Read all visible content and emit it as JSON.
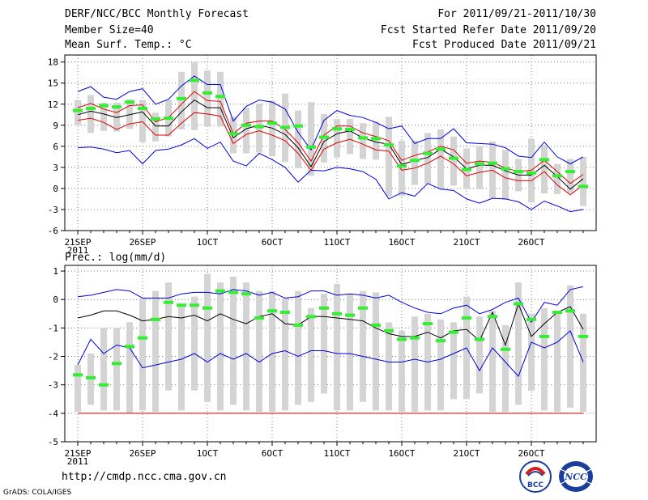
{
  "header": {
    "title": "DERF/NCC/BCC Monthly Forecast",
    "member_size": "Member Size=40",
    "variable": "Mean Surf. Temp.: °C",
    "period": "For 2011/09/21-2011/10/30",
    "fcst_started": "Fcst Started Refer Date 2011/09/20",
    "fcst_produced": "Fcst Produced Date 2011/09/21"
  },
  "footer": {
    "url": "http://cmdp.ncc.cma.gov.cn",
    "grads": "GrADS: COLA/IGES",
    "logo_bcc": "BCC",
    "logo_ncc": "NCC"
  },
  "colors": {
    "max_line": "#0000dd",
    "min_line": "#0000dd",
    "upper_line": "#dd0000",
    "lower_line": "#dd0000",
    "mean_line": "#000000",
    "observed_marker": "#33ee33",
    "spread_bar": "#d4d4d4"
  },
  "chart_data": [
    {
      "type": "line",
      "title": "Mean Surf. Temp.: °C",
      "ylim": [
        -6,
        19
      ],
      "yticks": [
        -6,
        -3,
        0,
        3,
        6,
        9,
        12,
        15,
        18
      ],
      "ytick_labels": [
        "-6",
        "-3",
        "0",
        "3",
        "6",
        "9",
        "12",
        "15",
        "18"
      ],
      "xtick_labels": [
        "21SEP",
        "26SEP",
        "1OCT",
        "6OCT",
        "11OCT",
        "16OCT",
        "21OCT",
        "26OCT"
      ],
      "xtick_days": [
        0,
        5,
        10,
        15,
        20,
        25,
        30,
        35
      ],
      "year_label": "2011",
      "days": 40,
      "series": [
        {
          "name": "max",
          "values": [
            13.8,
            14.5,
            13,
            12.7,
            13.8,
            14.2,
            12,
            12.7,
            14.6,
            16,
            14.8,
            14.8,
            9.6,
            11.7,
            12.6,
            12.3,
            11.3,
            8,
            5.5,
            9.7,
            11.1,
            10.4,
            10.1,
            9.4,
            8.5,
            8.9,
            6.4,
            7.1,
            7.1,
            8.5,
            6.5,
            6.4,
            6.3,
            5.8,
            4.6,
            4.4,
            6.6,
            4.5,
            3.5,
            4.5
          ]
        },
        {
          "name": "upper",
          "values": [
            11.5,
            12.1,
            11.3,
            10.8,
            11.8,
            11.9,
            9.5,
            10.1,
            12,
            13.8,
            12.5,
            12.4,
            7.8,
            9.3,
            9.6,
            9.6,
            8.4,
            6.5,
            3.9,
            7.6,
            8.9,
            8.9,
            7.9,
            7.4,
            6.8,
            4,
            4.7,
            5.2,
            6,
            5.5,
            3.6,
            3.9,
            3.7,
            2.9,
            2.4,
            2.6,
            4,
            2.4,
            0.7,
            2
          ]
        },
        {
          "name": "mean",
          "values": [
            10.5,
            11,
            10.6,
            10.1,
            10.5,
            10.9,
            8.9,
            8.9,
            10.9,
            12.6,
            11.5,
            11.5,
            7.2,
            8.5,
            9,
            8.6,
            7.7,
            5.8,
            3.1,
            6.7,
            7.8,
            8.2,
            7.2,
            6.6,
            6.3,
            3.4,
            4,
            4.4,
            5.6,
            4.5,
            2.8,
            3.3,
            3.3,
            2.5,
            1.9,
            1.9,
            3.3,
            1.7,
            -0.1,
            1.4
          ]
        },
        {
          "name": "lower",
          "values": [
            9.7,
            10,
            9.4,
            8.4,
            9.2,
            9.5,
            7.6,
            7.6,
            9.3,
            10.8,
            10.6,
            10.3,
            6.4,
            7.7,
            8.2,
            7.6,
            6.8,
            5,
            2.6,
            5.6,
            6.5,
            7,
            6.3,
            5.5,
            5.3,
            2.6,
            2.9,
            3.6,
            4.6,
            3.5,
            1.8,
            2.3,
            2.6,
            1.5,
            1.1,
            1.1,
            2.4,
            0.5,
            -0.9,
            0.5
          ]
        },
        {
          "name": "min",
          "values": [
            5.8,
            5.9,
            5.6,
            5.1,
            5.4,
            3.5,
            5.4,
            5.6,
            6.2,
            7.1,
            5.7,
            6.6,
            3.9,
            3.2,
            5,
            4.1,
            3,
            0.9,
            2.6,
            2.5,
            3,
            2.8,
            2.4,
            1.3,
            -1.5,
            -0.6,
            -1.1,
            0.7,
            -0.1,
            -0.3,
            -1.5,
            -2.1,
            -1.4,
            -1.5,
            -1.9,
            -3,
            -1.8,
            -2.5,
            -3.3,
            -3
          ]
        },
        {
          "name": "observed",
          "values": [
            11.1,
            11.4,
            11.8,
            11.6,
            12.3,
            11.4,
            9.9,
            10,
            12.8,
            15.4,
            13.6,
            13.1,
            7.8,
            9,
            8.8,
            9.3,
            8.7,
            8.9,
            5.9,
            7.3,
            8.5,
            8.4,
            7.2,
            7.1,
            6.2,
            3.2,
            4,
            5,
            5.6,
            4.3,
            2.7,
            3.5,
            3.6,
            2.8,
            2.4,
            2.2,
            4.1,
            1.8,
            2.4,
            0.3
          ]
        },
        {
          "name": "ens_high",
          "values": [
            12.6,
            13.3,
            12.2,
            12.2,
            12.7,
            12.6,
            10.8,
            12.6,
            16.6,
            18,
            16.8,
            16.6,
            10.2,
            11.5,
            12.1,
            12.5,
            13.5,
            11.1,
            12.3,
            10.6,
            9.9,
            9.9,
            9.3,
            9.5,
            10.2,
            6.8,
            6.8,
            7.9,
            8.4,
            7.4,
            5.7,
            6,
            6.7,
            5.5,
            4.2,
            7.1,
            6.2,
            3.5,
            4.2,
            4.5
          ]
        },
        {
          "name": "ens_low",
          "values": [
            9,
            7.9,
            8.2,
            8.1,
            8.5,
            6.6,
            6.7,
            7.4,
            8.4,
            8.3,
            8.8,
            8.8,
            5,
            5,
            5.1,
            4.6,
            3.8,
            2.9,
            1.8,
            3.7,
            4.4,
            4.9,
            4.2,
            4.1,
            -1.1,
            -1.1,
            0.5,
            0.6,
            -0.1,
            0.4,
            -0.1,
            -0.1,
            -1.4,
            -1.6,
            -0.4,
            -2,
            -0.7,
            -0.8,
            -0.6,
            -2.5
          ]
        }
      ]
    },
    {
      "type": "line",
      "title": "Prec.: log(mm/d)",
      "ylim": [
        -5,
        1.2
      ],
      "yticks": [
        -5,
        -4,
        -3,
        -2,
        -1,
        0,
        1
      ],
      "ytick_labels": [
        "-5",
        "-4",
        "-3",
        "-2",
        "-1",
        "0",
        "1"
      ],
      "xtick_labels": [
        "21SEP",
        "26SEP",
        "1OCT",
        "6OCT",
        "11OCT",
        "16OCT",
        "21OCT",
        "26OCT"
      ],
      "xtick_days": [
        0,
        5,
        10,
        15,
        20,
        25,
        30,
        35
      ],
      "year_label": "2011",
      "days": 40,
      "series": [
        {
          "name": "max",
          "values": [
            0.1,
            0.15,
            0.25,
            0.35,
            0.3,
            0.05,
            0.05,
            0.05,
            0.2,
            0.25,
            0.25,
            0.2,
            0.35,
            0.3,
            0.15,
            0.25,
            0.05,
            0.1,
            0.3,
            0.3,
            0.15,
            0.2,
            0.15,
            0.05,
            0.15,
            -0.1,
            -0.3,
            -0.45,
            -0.5,
            -0.3,
            -0.2,
            -0.5,
            -0.35,
            -0.1,
            0.05,
            -0.8,
            -0.1,
            -0.2,
            0.35,
            0.45
          ]
        },
        {
          "name": "mean",
          "values": [
            -0.65,
            -0.55,
            -0.4,
            -0.4,
            -0.55,
            -0.75,
            -0.7,
            -0.6,
            -0.65,
            -0.55,
            -0.75,
            -0.5,
            -0.7,
            -0.85,
            -0.6,
            -0.5,
            -0.85,
            -0.9,
            -0.6,
            -0.6,
            -0.65,
            -0.7,
            -0.75,
            -1,
            -1.2,
            -1.3,
            -1.3,
            -1.15,
            -1.35,
            -1.1,
            -1.05,
            -1.45,
            -0.45,
            -1.6,
            -0.15,
            -1.3,
            -0.85,
            -0.45,
            -0.25,
            -1.05
          ]
        },
        {
          "name": "min",
          "values": [
            -2.3,
            -1.4,
            -1.9,
            -1.6,
            -1.7,
            -2.4,
            -2.3,
            -2.2,
            -2.1,
            -1.9,
            -2.2,
            -1.9,
            -2.1,
            -1.9,
            -2.2,
            -1.9,
            -1.8,
            -2,
            -1.8,
            -1.8,
            -1.9,
            -1.9,
            -2,
            -2.1,
            -2.2,
            -2.2,
            -2.1,
            -2.2,
            -2.1,
            -1.9,
            -1.7,
            -2.5,
            -1.7,
            -2.2,
            -2.7,
            -1.5,
            -1.7,
            -1.5,
            -1.1,
            -2.2
          ]
        },
        {
          "name": "floor",
          "values": [
            -4,
            -4,
            -4,
            -4,
            -4,
            -4,
            -4,
            -4,
            -4,
            -4,
            -4,
            -4,
            -4,
            -4,
            -4,
            -4,
            -4,
            -4,
            -4,
            -4,
            -4,
            -4,
            -4,
            -4,
            -4,
            -4,
            -4,
            -4,
            -4,
            -4,
            -4,
            -4,
            -4,
            -4,
            -4,
            -4,
            -4,
            -4,
            -4,
            -4
          ]
        },
        {
          "name": "observed",
          "values": [
            -2.65,
            -2.75,
            -3,
            -2.25,
            -1.65,
            -1.35,
            -0.7,
            -0.1,
            -0.2,
            -0.2,
            -0.3,
            0.3,
            0.25,
            0.2,
            -0.65,
            -0.4,
            -0.45,
            -0.9,
            -0.6,
            -0.3,
            -0.5,
            -0.55,
            -0.3,
            -0.9,
            -1.1,
            -1.4,
            -1.35,
            -0.85,
            -1.45,
            -1.15,
            -0.65,
            -1.4,
            -0.6,
            -1.75,
            -0.15,
            -0.7,
            -1.3,
            -0.45,
            -0.4,
            -1.3
          ]
        },
        {
          "name": "ens_high",
          "values": [
            -2.3,
            -1.9,
            -1,
            -1,
            -0.8,
            0.05,
            0.3,
            0.6,
            -0.2,
            0.1,
            0.9,
            0.6,
            0.8,
            0.6,
            0.3,
            0.3,
            0.05,
            0.3,
            -0.3,
            0.2,
            0.55,
            0.2,
            0.3,
            0.25,
            -0.8,
            -1.1,
            -0.6,
            -0.5,
            -0.7,
            -0.8,
            0.1,
            -0.6,
            -0.4,
            -0.9,
            0.6,
            -0.5,
            -0.3,
            -0.4,
            0.5,
            -0.5
          ]
        },
        {
          "name": "ens_low",
          "values": [
            -3.95,
            -3.7,
            -3.9,
            -3.9,
            -4,
            -3.9,
            -3.95,
            -3.2,
            -3.9,
            -3.2,
            -3.6,
            -3.9,
            -3.7,
            -3.9,
            -3.95,
            -3.95,
            -3.9,
            -3.7,
            -3.6,
            -3.3,
            -3.9,
            -3.9,
            -3.6,
            -3.9,
            -3.9,
            -3.95,
            -3.95,
            -3.9,
            -3.9,
            -3.5,
            -3.5,
            -3.3,
            -3.95,
            -3.95,
            -3.7,
            -3.2,
            -3.9,
            -3.95,
            -3.8,
            -3.95
          ]
        }
      ]
    }
  ]
}
